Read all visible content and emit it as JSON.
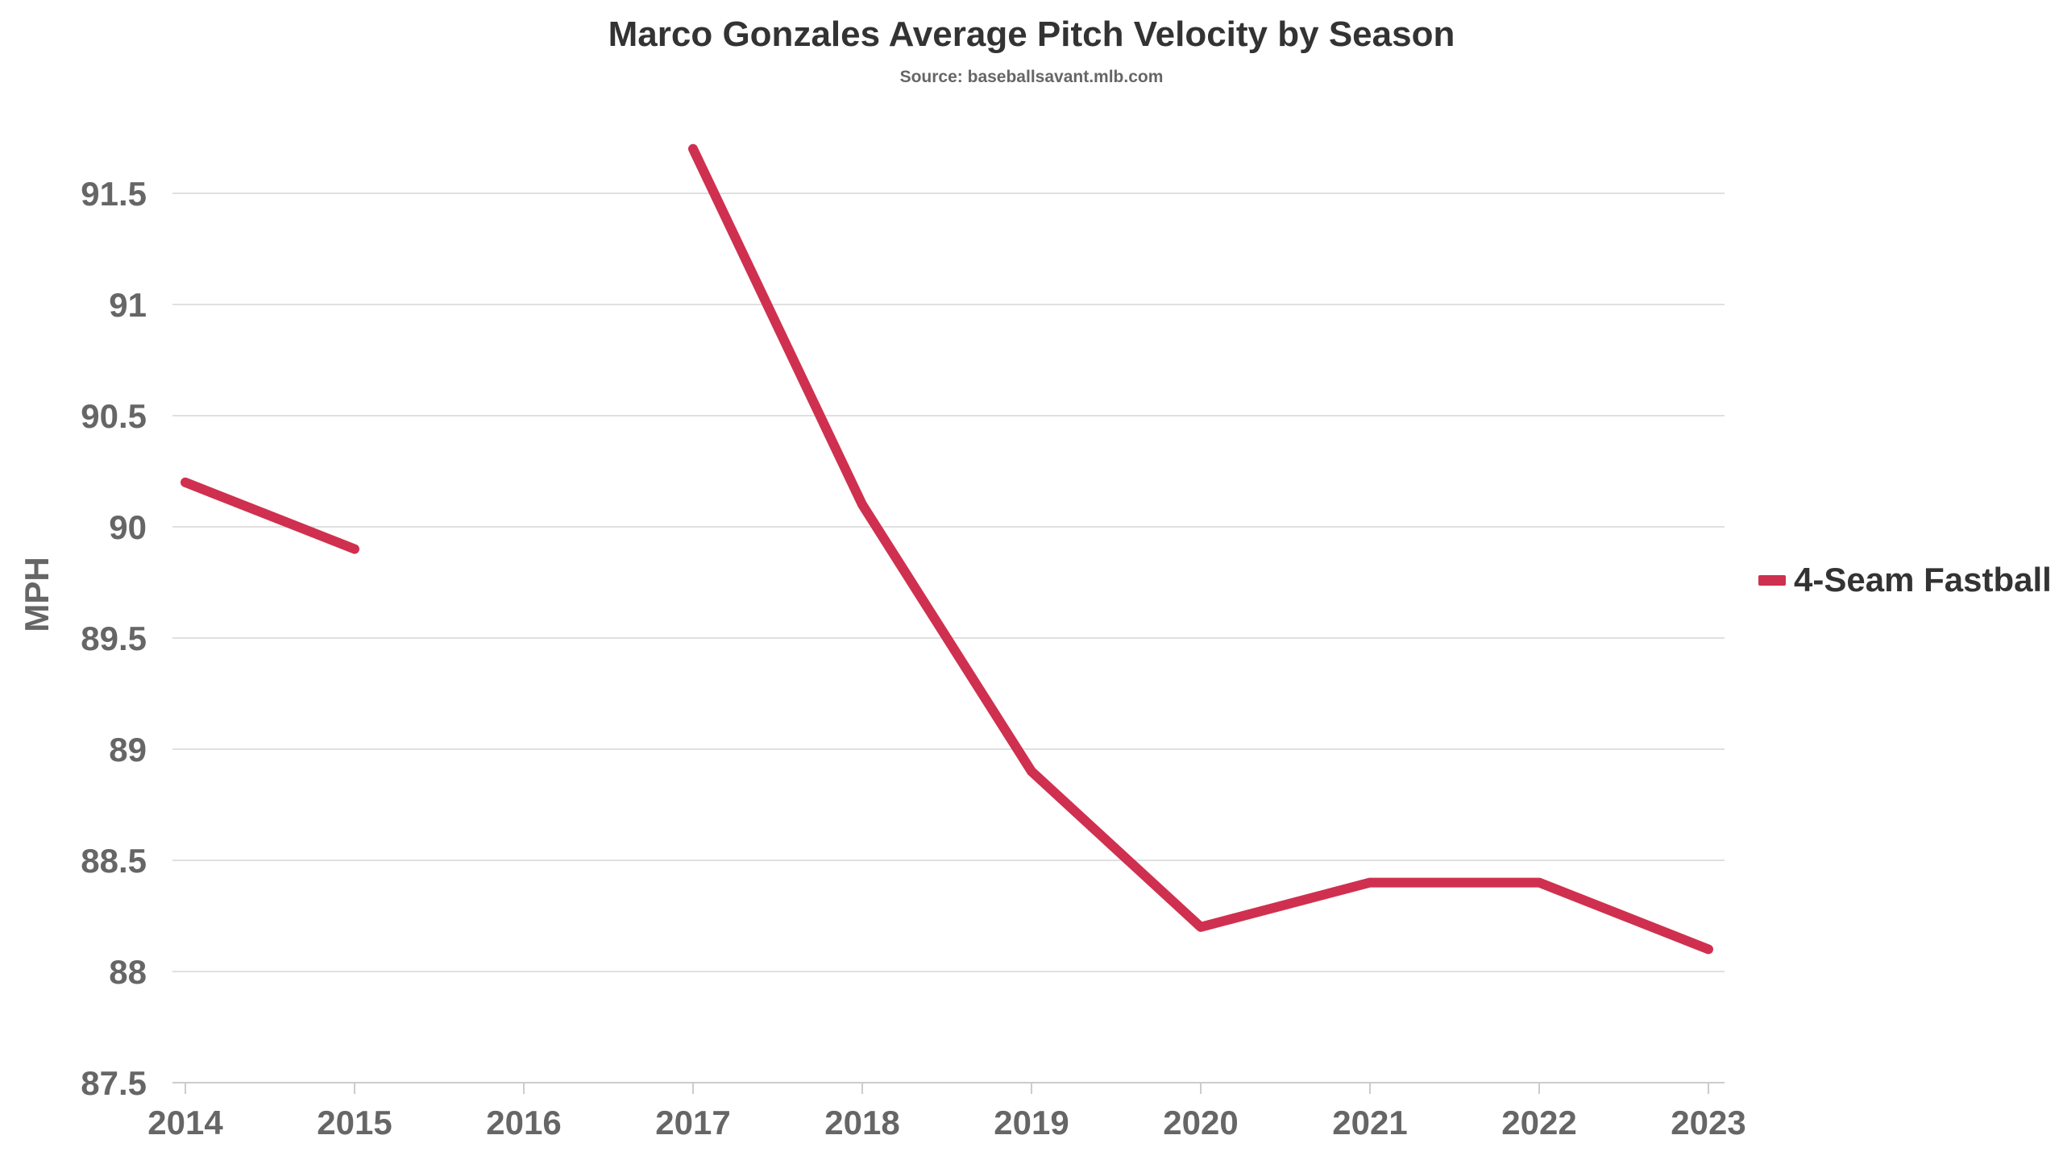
{
  "title": "Marco Gonzales Average Pitch Velocity by Season",
  "subtitle": "Source: baseballsavant.mlb.com",
  "colors": {
    "series": "#D0304F",
    "grid": "#E0E0E0",
    "axis": "#CCCCCC",
    "tick_text": "#666666",
    "title_text": "#333333"
  },
  "chart_data": {
    "type": "line",
    "title": "Marco Gonzales Average Pitch Velocity by Season",
    "subtitle": "Source: baseballsavant.mlb.com",
    "xlabel": "",
    "ylabel": "MPH",
    "categories": [
      "2014",
      "2015",
      "2016",
      "2017",
      "2018",
      "2019",
      "2020",
      "2021",
      "2022",
      "2023"
    ],
    "series": [
      {
        "name": "4-Seam Fastball",
        "color": "#D0304F",
        "values": [
          90.2,
          89.9,
          null,
          91.7,
          90.1,
          88.9,
          88.2,
          88.4,
          88.4,
          88.1
        ]
      }
    ],
    "ylim": [
      87.5,
      91.7
    ],
    "yticks": [
      "87.5",
      "88",
      "88.5",
      "89",
      "89.5",
      "90",
      "90.5",
      "91",
      "91.5"
    ],
    "grid": true,
    "legend_position": "right"
  }
}
